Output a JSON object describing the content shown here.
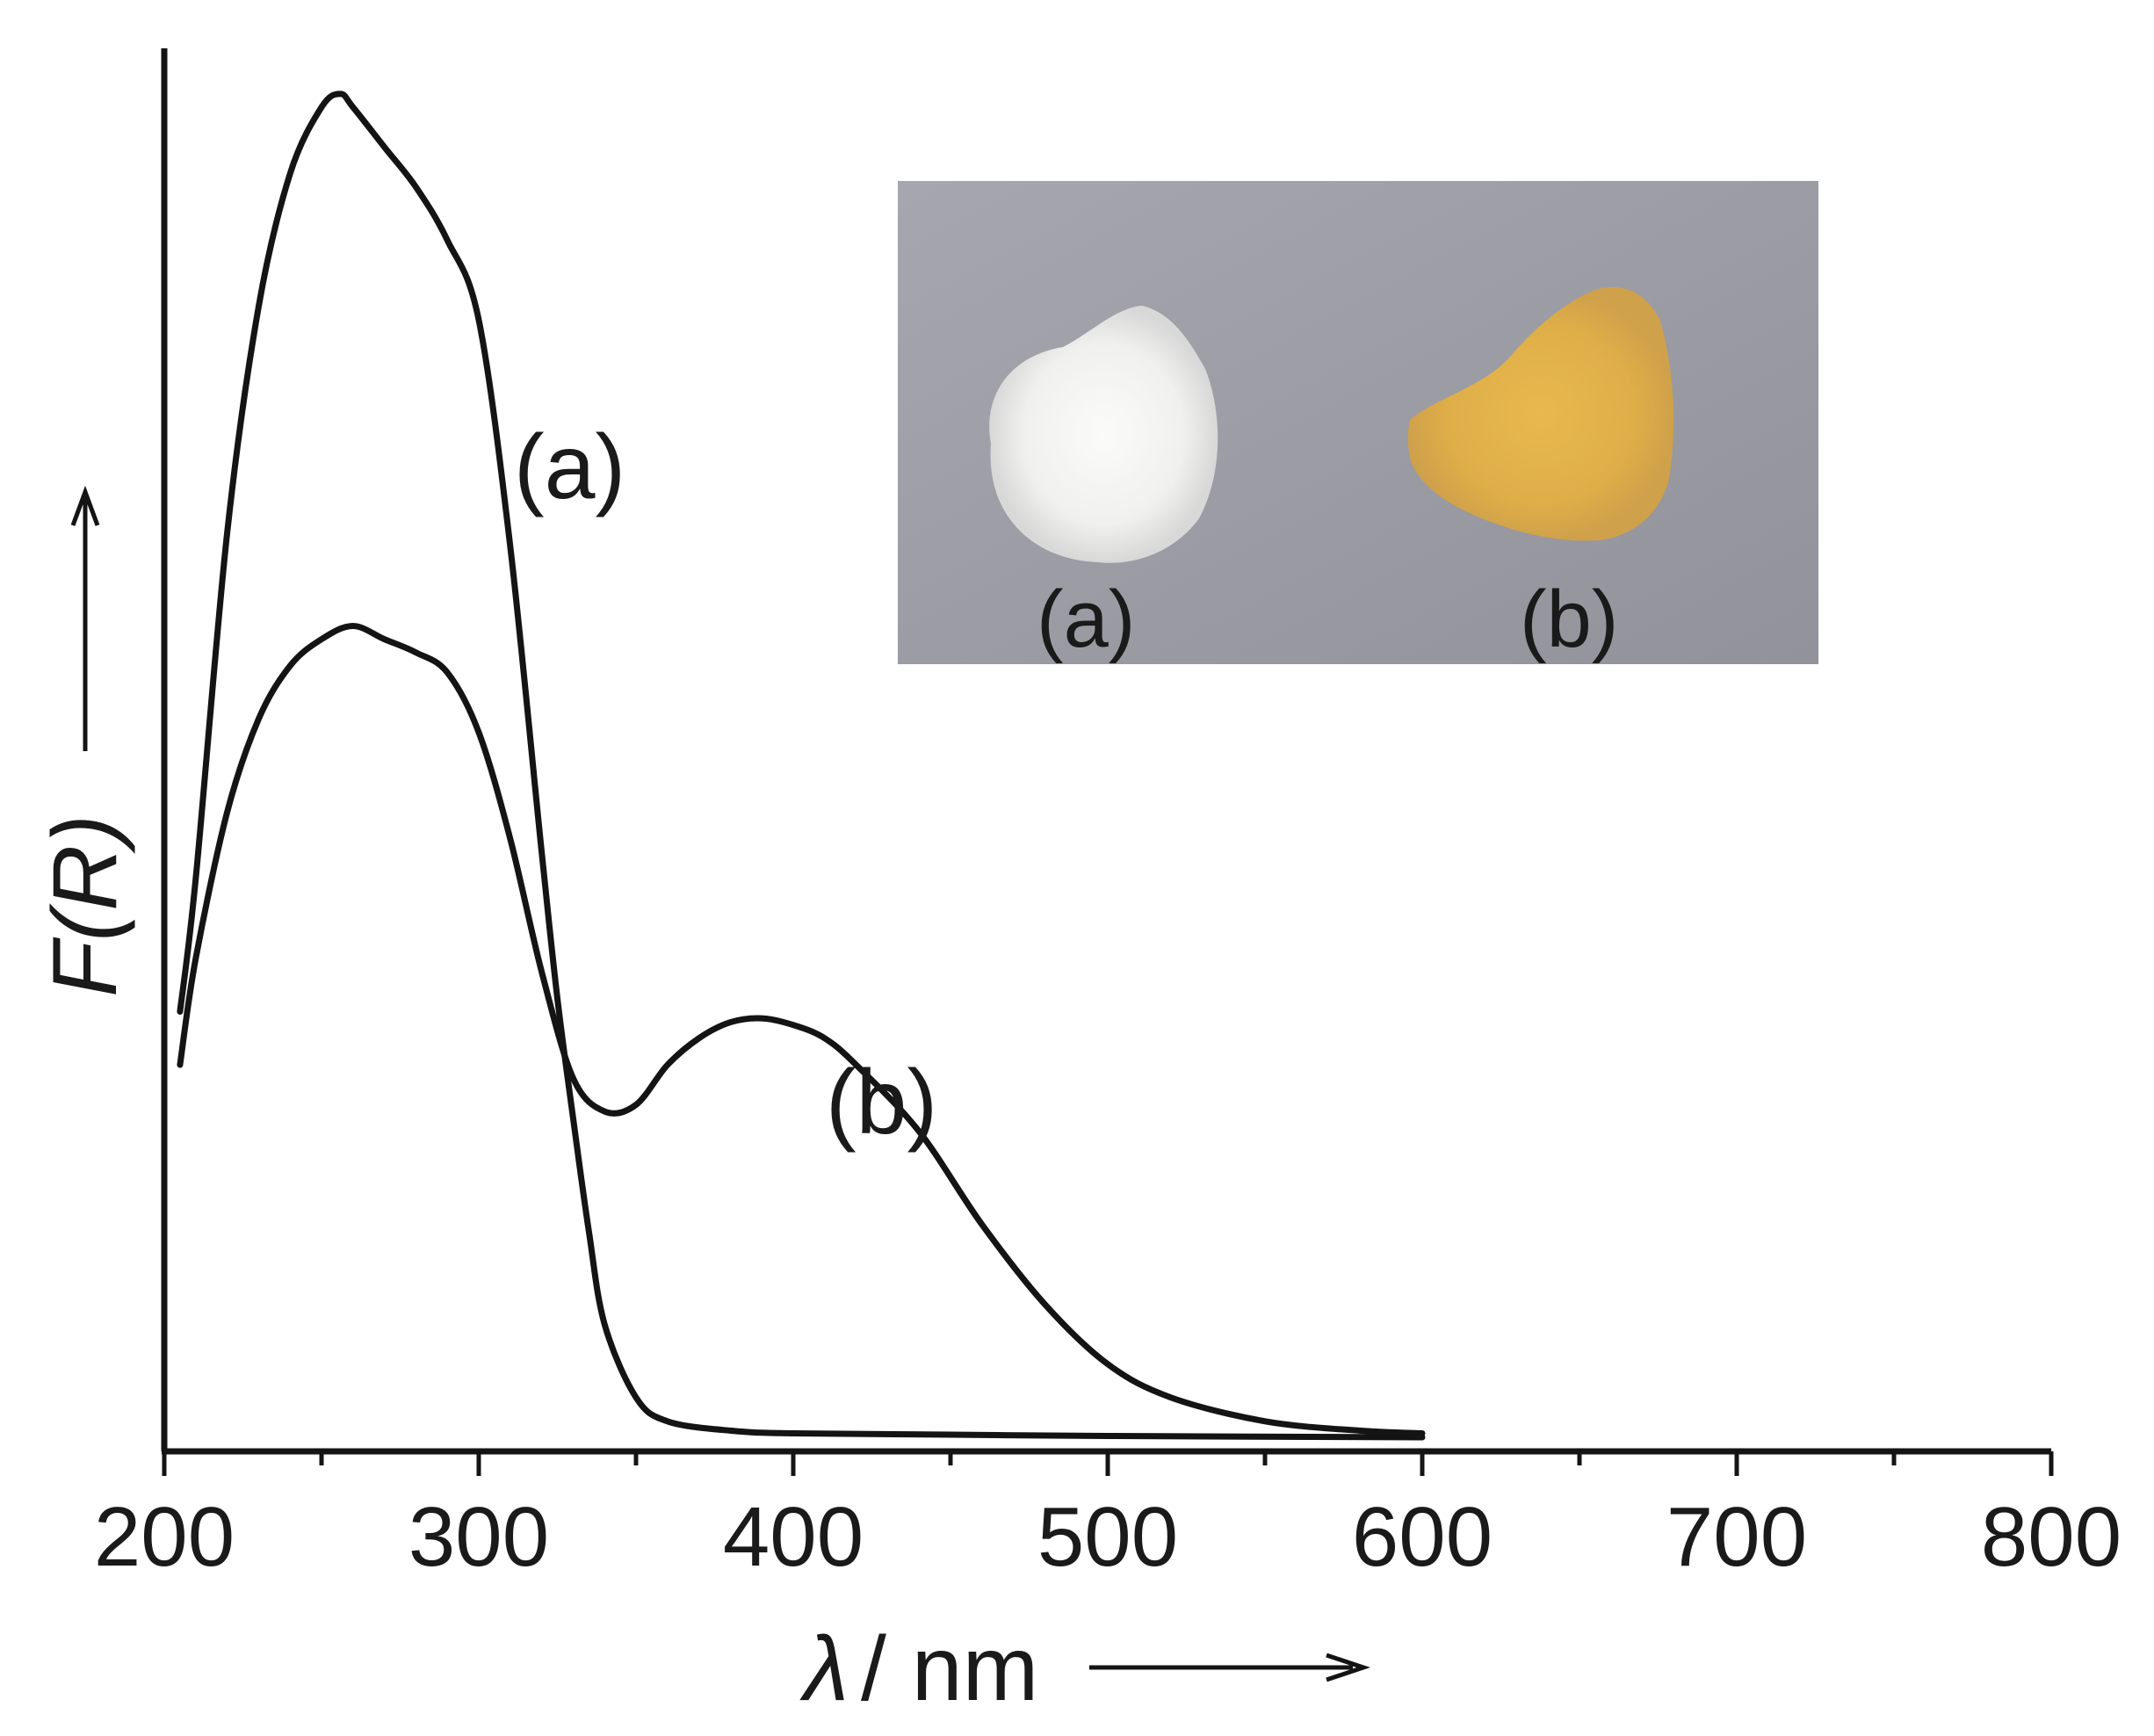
{
  "chart_data": {
    "type": "line",
    "xlabel_symbol": "λ",
    "xlabel_unit": "/ nm",
    "ylabel": "F(R)",
    "xlim": [
      200,
      800
    ],
    "x_ticks": [
      "200",
      "300",
      "400",
      "500",
      "600",
      "700",
      "800"
    ],
    "y_ticks_shown": false,
    "grid": false,
    "series": [
      {
        "name": "(a)",
        "x": [
          205,
          210,
          220,
          230,
          240,
          250,
          256,
          260,
          270,
          280,
          290,
          300,
          310,
          320,
          325,
          330,
          335,
          340,
          350,
          360,
          380,
          400,
          450,
          500,
          600
        ],
        "y": [
          0.32,
          0.42,
          0.68,
          0.85,
          0.95,
          1.0,
          1.01,
          1.0,
          0.97,
          0.94,
          0.9,
          0.84,
          0.67,
          0.44,
          0.33,
          0.24,
          0.155,
          0.085,
          0.03,
          0.012,
          0.005,
          0.003,
          0.002,
          0.001,
          0.0
        ]
      },
      {
        "name": "(b)",
        "x": [
          205,
          210,
          220,
          230,
          240,
          250,
          260,
          270,
          280,
          290,
          300,
          310,
          320,
          330,
          340,
          350,
          360,
          370,
          380,
          390,
          400,
          410,
          420,
          440,
          460,
          480,
          500,
          520,
          550,
          580,
          600
        ],
        "y": [
          0.28,
          0.36,
          0.47,
          0.54,
          0.58,
          0.6,
          0.61,
          0.6,
          0.59,
          0.575,
          0.53,
          0.45,
          0.35,
          0.27,
          0.245,
          0.25,
          0.28,
          0.3,
          0.312,
          0.315,
          0.31,
          0.3,
          0.28,
          0.23,
          0.16,
          0.1,
          0.055,
          0.03,
          0.012,
          0.005,
          0.003
        ]
      }
    ],
    "annotations": [
      "(a)",
      "(b)"
    ],
    "inset": {
      "content": "photograph of two powder samples",
      "labels": [
        "(a)",
        "(b)"
      ],
      "background_color": "#9c9ca4",
      "sample_colors": [
        "#f4f4f2",
        "#e0b050"
      ]
    },
    "colors": {
      "line": "#141414",
      "axis": "#141414"
    }
  }
}
